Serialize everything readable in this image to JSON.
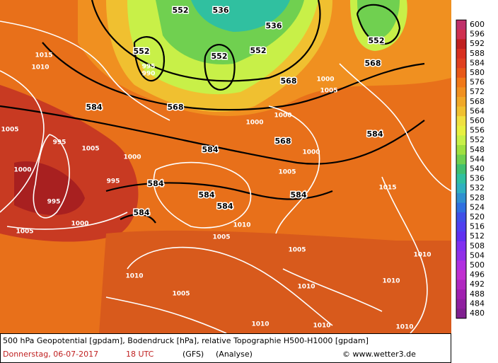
{
  "map": {
    "pressure_labels": [
      1015,
      1010,
      1005,
      995,
      1000,
      995,
      995,
      1000,
      1005,
      1010,
      1005,
      1010,
      1010,
      1010,
      1010,
      1015,
      1005,
      1010,
      1010,
      1000,
      1000,
      1000,
      1005,
      1000,
      1005,
      995,
      990,
      1005,
      1010,
      1000,
      1005
    ],
    "height_labels": [
      552,
      536,
      552,
      552,
      552,
      552,
      568,
      568,
      568,
      584,
      584,
      568,
      584,
      584,
      584,
      584,
      584,
      584,
      536
    ],
    "legend": {
      "levels": [
        600,
        596,
        592,
        588,
        584,
        580,
        576,
        572,
        568,
        564,
        560,
        556,
        552,
        548,
        544,
        540,
        536,
        532,
        528,
        524,
        520,
        516,
        512,
        508,
        504,
        500,
        496,
        492,
        488,
        484,
        480
      ],
      "colors": [
        "#c0306a",
        "#d03050",
        "#c02020",
        "#d83020",
        "#e04020",
        "#e85818",
        "#f07818",
        "#f09020",
        "#f0a828",
        "#f0c030",
        "#f0e040",
        "#e8f040",
        "#c8f048",
        "#a0e040",
        "#70d050",
        "#40c070",
        "#30c0a0",
        "#30b0c0",
        "#3090d0",
        "#3070e0",
        "#4050e8",
        "#5040f0",
        "#6030f0",
        "#8030f0",
        "#9030e8",
        "#b030e0",
        "#c030d0",
        "#b028c0",
        "#a020b0",
        "#9020a0",
        "#802090"
      ]
    }
  },
  "footer": {
    "description": "500 hPa Geopotential [gpdam], Bodendruck [hPa], relative Topographie H500-H1000 [gpdam]",
    "date": "Donnerstag, 06-07-2017",
    "time": "18 UTC",
    "model": "(GFS)",
    "run": "(Analyse)",
    "credit": "© www.wetter3.de"
  }
}
